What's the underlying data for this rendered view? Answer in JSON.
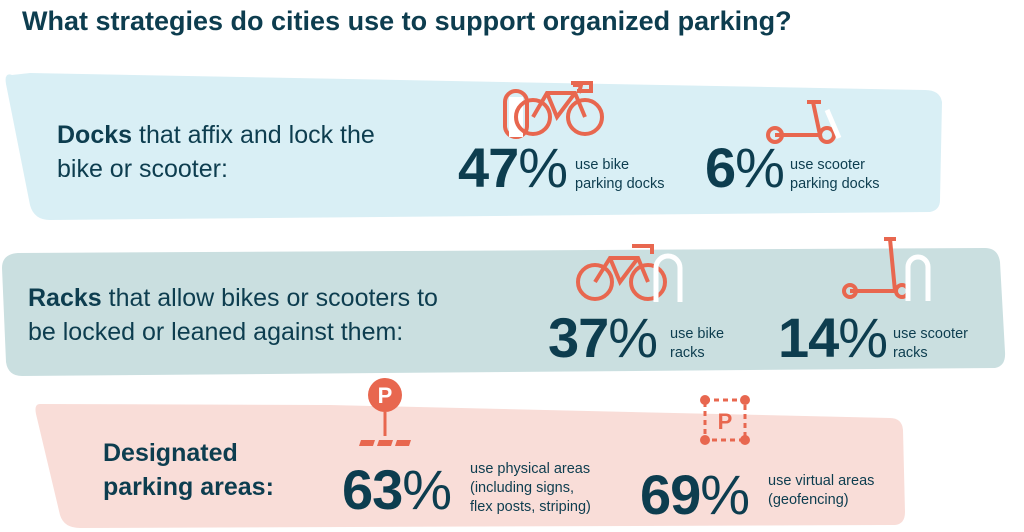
{
  "title": "What strategies do cities use to support organized parking?",
  "colors": {
    "text": "#0d3d4f",
    "accent": "#e8674f",
    "docks_bg": "#d9eff5",
    "racks_bg": "#cadfe0",
    "areas_bg": "#f9ddd8"
  },
  "sections": [
    {
      "bold": "Docks",
      "line1_rest": " that affix and lock the",
      "line2": "bike or scooter:",
      "stats": [
        {
          "value": "47",
          "pct": "%",
          "label1": "use bike",
          "label2": "parking docks",
          "icon": "bike-dock-icon"
        },
        {
          "value": "6",
          "pct": "%",
          "label1": "use scooter",
          "label2": "parking docks",
          "icon": "scooter-dock-icon"
        }
      ]
    },
    {
      "bold": "Racks",
      "line1_rest": " that allow bikes or scooters to",
      "line2": "be locked or leaned against them:",
      "stats": [
        {
          "value": "37",
          "pct": "%",
          "label1": "use bike",
          "label2": "racks",
          "icon": "bike-rack-icon"
        },
        {
          "value": "14",
          "pct": "%",
          "label1": "use scooter",
          "label2": "racks",
          "icon": "scooter-rack-icon"
        }
      ]
    },
    {
      "bold": "Designated",
      "line2": "parking areas:",
      "stats": [
        {
          "value": "63",
          "pct": "%",
          "label1": "use physical areas",
          "label2": "(including signs,",
          "label3": "flex posts, striping)",
          "icon": "parking-pin-icon"
        },
        {
          "value": "69",
          "pct": "%",
          "label1": "use virtual areas",
          "label2": "(geofencing)",
          "icon": "geofence-parking-icon"
        }
      ]
    }
  ]
}
